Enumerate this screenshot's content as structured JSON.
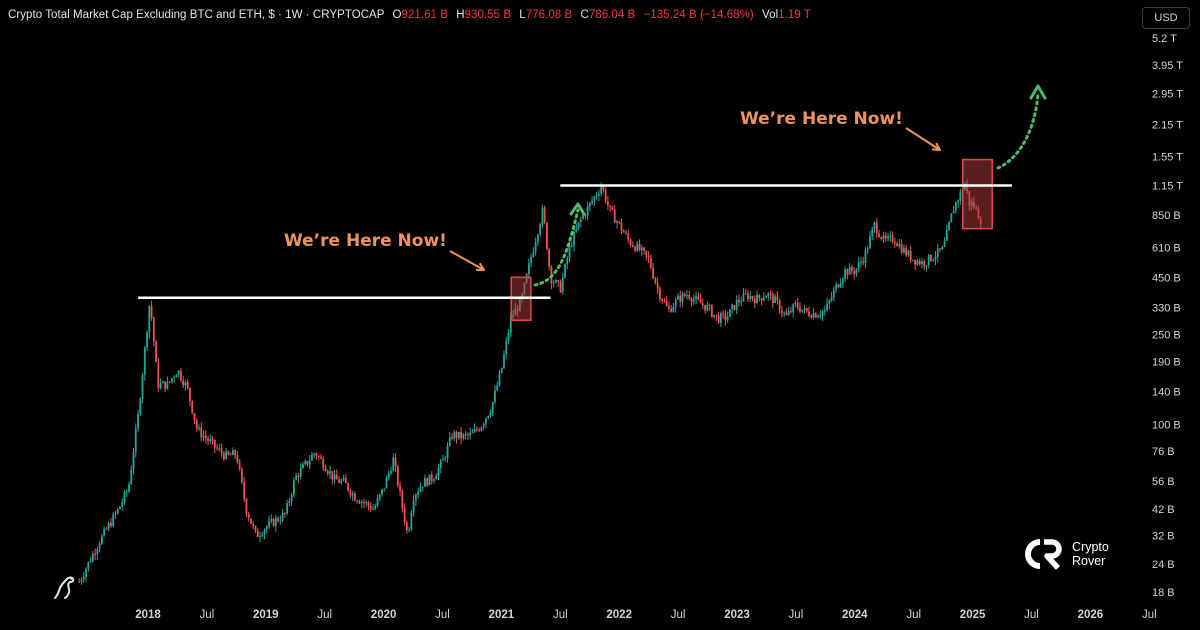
{
  "header": {
    "title": "Crypto Total Market Cap Excluding BTC and ETH, $ · 1W · CRYPTOCAP",
    "open_label": "O",
    "open": "921.61 B",
    "high_label": "H",
    "high": "930.55 B",
    "low_label": "L",
    "low": "776.08 B",
    "close_label": "C",
    "close": "786.04 B",
    "change": "−135.24 B (−14.68%)",
    "vol_label": "Vol",
    "vol": "1.19 T"
  },
  "currency_button": "USD",
  "annotations": {
    "callout_left": "We’re Here Now!",
    "callout_right": "We’re Here Now!"
  },
  "watermark": {
    "line1": "Crypto",
    "line2": "Rover"
  },
  "colors": {
    "up": "#26a69a",
    "down": "#ef5350",
    "callout": "#f0935a",
    "resistance": "#ffffff",
    "projection": "#4cbb6c",
    "highlight_box": "#b53a3a"
  },
  "chart_data": {
    "type": "candlestick",
    "title": "Crypto Total Market Cap Excluding BTC and ETH, $ · 1W · CRYPTOCAP",
    "y_scale": "log",
    "y_tick_labels": [
      "5.2 T",
      "3.95 T",
      "2.95 T",
      "2.15 T",
      "1.55 T",
      "1.15 T",
      "850 B",
      "610 B",
      "450 B",
      "330 B",
      "250 B",
      "190 B",
      "140 B",
      "100 B",
      "76 B",
      "56 B",
      "42 B",
      "32 B",
      "24 B",
      "18 B"
    ],
    "y_ticks_billions": [
      5200,
      3950,
      2950,
      2150,
      1550,
      1150,
      850,
      610,
      450,
      330,
      250,
      190,
      140,
      100,
      76,
      56,
      42,
      32,
      24,
      18
    ],
    "x_tick_labels": [
      "2018",
      "Jul",
      "2019",
      "Jul",
      "2020",
      "Jul",
      "2021",
      "Jul",
      "2022",
      "Jul",
      "2023",
      "Jul",
      "2024",
      "Jul",
      "2025",
      "Jul",
      "2026",
      "Jul"
    ],
    "x_ticks": [
      "2018-01",
      "2018-07",
      "2019-01",
      "2019-07",
      "2020-01",
      "2020-07",
      "2021-01",
      "2021-07",
      "2022-01",
      "2022-07",
      "2023-01",
      "2023-07",
      "2024-01",
      "2024-07",
      "2025-01",
      "2025-07",
      "2026-01",
      "2026-07"
    ],
    "ylim_billions": [
      18,
      5200
    ],
    "xlim": [
      "2017-05",
      "2026-09"
    ],
    "close_series_billions": [
      [
        "2017-06",
        20
      ],
      [
        "2017-08",
        30
      ],
      [
        "2017-10",
        42
      ],
      [
        "2017-11",
        52
      ],
      [
        "2017-12",
        110
      ],
      [
        "2018-01-07",
        360
      ],
      [
        "2018-02",
        150
      ],
      [
        "2018-03",
        150
      ],
      [
        "2018-04",
        175
      ],
      [
        "2018-05",
        145
      ],
      [
        "2018-06",
        95
      ],
      [
        "2018-08",
        78
      ],
      [
        "2018-09",
        72
      ],
      [
        "2018-10",
        74
      ],
      [
        "2018-11",
        42
      ],
      [
        "2018-12",
        32
      ],
      [
        "2019-01",
        35
      ],
      [
        "2019-03",
        40
      ],
      [
        "2019-04",
        58
      ],
      [
        "2019-06",
        75
      ],
      [
        "2019-07",
        66
      ],
      [
        "2019-08",
        57
      ],
      [
        "2019-09",
        55
      ],
      [
        "2019-10",
        48
      ],
      [
        "2019-11",
        45
      ],
      [
        "2019-12",
        42
      ],
      [
        "2020-01",
        52
      ],
      [
        "2020-02",
        70
      ],
      [
        "2020-03-15",
        32
      ],
      [
        "2020-04",
        48
      ],
      [
        "2020-05",
        55
      ],
      [
        "2020-06",
        58
      ],
      [
        "2020-07",
        68
      ],
      [
        "2020-08",
        90
      ],
      [
        "2020-09",
        88
      ],
      [
        "2020-10",
        90
      ],
      [
        "2020-11",
        100
      ],
      [
        "2020-12",
        120
      ],
      [
        "2021-01",
        175
      ],
      [
        "2021-02",
        300
      ],
      [
        "2021-03",
        350
      ],
      [
        "2021-04",
        550
      ],
      [
        "2021-05-08",
        900
      ],
      [
        "2021-06",
        450
      ],
      [
        "2021-07",
        400
      ],
      [
        "2021-08",
        620
      ],
      [
        "2021-09",
        800
      ],
      [
        "2021-11-07",
        1150
      ],
      [
        "2021-12",
        900
      ],
      [
        "2022-01",
        770
      ],
      [
        "2022-02",
        650
      ],
      [
        "2022-03",
        600
      ],
      [
        "2022-04",
        540
      ],
      [
        "2022-05",
        390
      ],
      [
        "2022-06",
        320
      ],
      [
        "2022-07",
        360
      ],
      [
        "2022-08",
        380
      ],
      [
        "2022-09",
        350
      ],
      [
        "2022-10",
        330
      ],
      [
        "2022-11",
        295
      ],
      [
        "2022-12",
        300
      ],
      [
        "2023-01",
        350
      ],
      [
        "2023-02",
        375
      ],
      [
        "2023-03",
        360
      ],
      [
        "2023-04",
        380
      ],
      [
        "2023-05",
        350
      ],
      [
        "2023-06",
        300
      ],
      [
        "2023-07",
        340
      ],
      [
        "2023-08",
        315
      ],
      [
        "2023-09",
        310
      ],
      [
        "2023-10",
        320
      ],
      [
        "2023-11",
        400
      ],
      [
        "2023-12",
        480
      ],
      [
        "2024-01",
        480
      ],
      [
        "2024-02",
        560
      ],
      [
        "2024-03",
        770
      ],
      [
        "2024-04",
        650
      ],
      [
        "2024-05",
        670
      ],
      [
        "2024-06",
        590
      ],
      [
        "2024-07",
        540
      ],
      [
        "2024-08",
        520
      ],
      [
        "2024-09",
        560
      ],
      [
        "2024-10",
        600
      ],
      [
        "2024-11",
        900
      ],
      [
        "2024-12-08",
        1180
      ],
      [
        "2024-12-22",
        950
      ],
      [
        "2025-01",
        960
      ],
      [
        "2025-02",
        786
      ]
    ],
    "last_candle": {
      "open": 921.61,
      "high": 930.55,
      "low": 776.08,
      "close": 786.04,
      "volume_trillions": 1.19
    },
    "resistance_lines_billions": [
      {
        "level": 365,
        "from": "2017-12",
        "to": "2021-06"
      },
      {
        "level": 1150,
        "from": "2021-07",
        "to": "2025-05"
      }
    ],
    "highlight_boxes": [
      {
        "from": "2021-02",
        "to": "2021-04",
        "low": 290,
        "high": 450
      },
      {
        "from": "2024-12",
        "to": "2025-03",
        "low": 740,
        "high": 1500
      }
    ],
    "grid": false,
    "legend": "none"
  }
}
